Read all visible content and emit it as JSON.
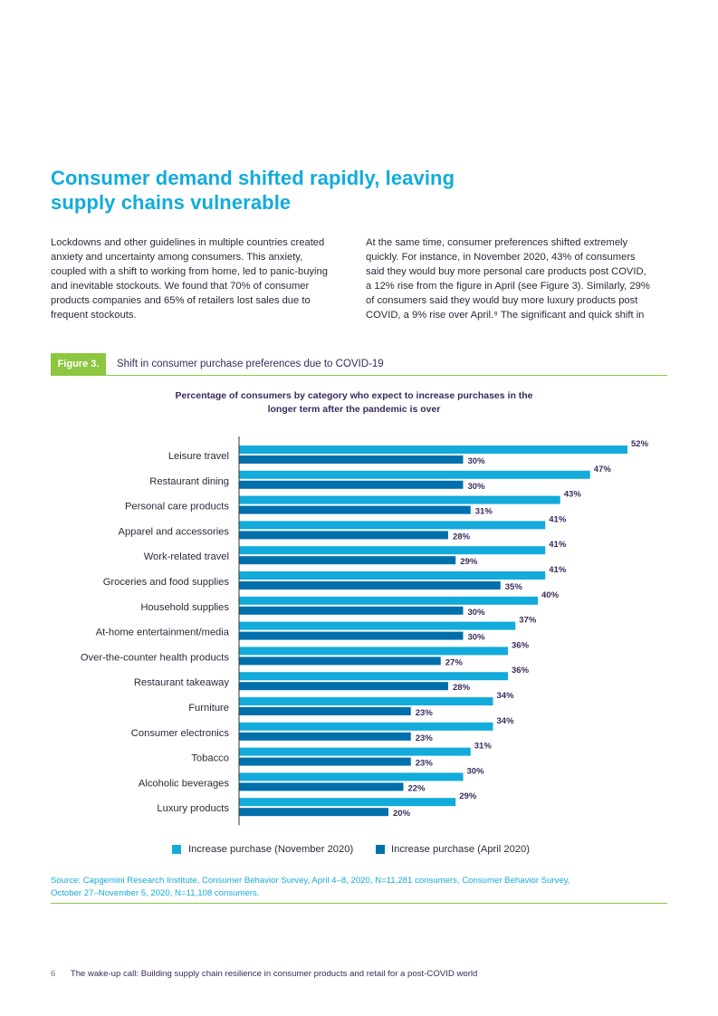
{
  "heading": {
    "line1": "Consumer demand shifted rapidly, leaving",
    "line2": "supply chains vulnerable"
  },
  "body_left": [
    "Lockdowns and other guidelines in multiple countries created",
    "anxiety and uncertainty among consumers. This anxiety,",
    "coupled with a shift to working from home, led to panic-buying",
    "and inevitable stockouts. We found that 70% of consumer",
    "products companies and 65% of retailers lost sales due to",
    "frequent stockouts."
  ],
  "body_right": [
    "At the same time, consumer preferences shifted extremely",
    "quickly. For instance, in November 2020, 43% of consumers",
    "said they would buy more personal care products post COVID,",
    "a 12% rise from the figure in April (see Figure 3). Similarly, 29%",
    "of consumers said they would buy more luxury products post",
    "COVID, a 9% rise over April.⁹ The significant and quick shift in"
  ],
  "figure": {
    "tag": "Figure 3.",
    "title": "Shift in consumer purchase preferences due to COVID-19"
  },
  "chart_title": {
    "line1": "Percentage of consumers by category who expect to increase purchases in the",
    "line2": "longer term after the pandemic is over"
  },
  "chart_data": {
    "type": "bar",
    "orientation": "horizontal",
    "categories": [
      "Leisure travel",
      "Restaurant dining",
      "Personal care products",
      "Apparel and accessories",
      "Work-related travel",
      "Groceries and food supplies",
      "Household supplies",
      "At-home entertainment/media",
      "Over-the-counter health products",
      "Restaurant takeaway",
      "Furniture",
      "Consumer electronics",
      "Tobacco",
      "Alcoholic beverages",
      "Luxury products"
    ],
    "series": [
      {
        "name": "Increase purchase (November 2020)",
        "color": "#12abdb",
        "values": [
          52,
          47,
          43,
          41,
          41,
          41,
          40,
          37,
          36,
          36,
          34,
          34,
          31,
          30,
          29
        ]
      },
      {
        "name": "Increase purchase (April 2020)",
        "color": "#0070ad",
        "values": [
          30,
          30,
          31,
          28,
          29,
          35,
          30,
          30,
          27,
          28,
          23,
          23,
          23,
          22,
          20
        ]
      }
    ],
    "value_suffix": "%",
    "xlim": [
      0,
      52
    ],
    "grid": false,
    "legend_position": "bottom"
  },
  "source": {
    "line1": "Source: Capgemini Research Institute, Consumer Behavior Survey, April 4–8, 2020, N=11,281 consumers, Consumer Behavior Survey,",
    "line2": "October 27–November 5, 2020, N=11,108 consumers."
  },
  "footer": {
    "page_number": "6",
    "text": "The wake-up call: Building supply chain resilience in consumer products and retail for a post-COVID world"
  },
  "colors": {
    "accent": "#12abdb",
    "dark_bar": "#0070ad",
    "figure_green": "#8dc63f",
    "dark_text": "#3b2a5c"
  }
}
